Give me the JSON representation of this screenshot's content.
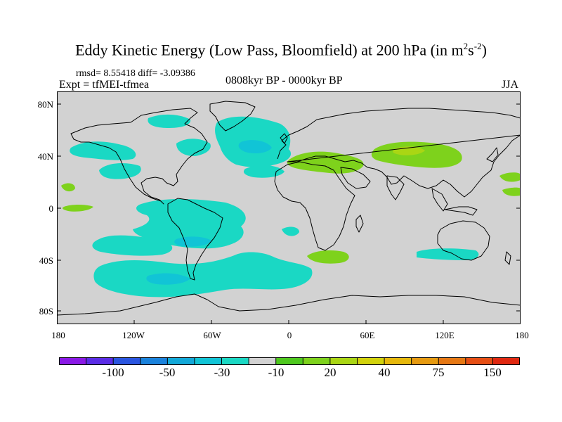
{
  "title": {
    "main": "Eddy Kinetic Energy (Low Pass, Bloomfield) at 200 hPa (in m",
    "sup1": "2",
    "mid": "s",
    "sup2": "-2",
    "end": ")"
  },
  "stats": "rmsd= 8.55418 diff= -3.09386",
  "experiment": "Expt = tfMEI-tfmea",
  "period": "0808kyr BP - 0000kyr BP",
  "season": "JJA",
  "map": {
    "projection": "cylindrical-equidistant",
    "lat_labels": [
      "80N",
      "40N",
      "0",
      "40S",
      "80S"
    ],
    "lon_labels": [
      "180",
      "120W",
      "60W",
      "0",
      "60E",
      "120E",
      "180"
    ],
    "background_color": "#d2d2d2"
  },
  "colorbar": {
    "colors": [
      "#8a19e6",
      "#5a2ce6",
      "#2a55e0",
      "#1a82dc",
      "#12a8d8",
      "#11c4d6",
      "#1ad8c4",
      "#d2d2d2",
      "#4ec81e",
      "#7ed21c",
      "#aad614",
      "#d2d20c",
      "#e6b80c",
      "#e69a10",
      "#e67814",
      "#e64e14",
      "#e02810"
    ],
    "labels": [
      "-100",
      "-50",
      "-30",
      "-10",
      "20",
      "40",
      "75",
      "150"
    ]
  },
  "anomaly_regions": [
    {
      "region": "Greenland / North Atlantic",
      "sign": "negative",
      "level": "-10"
    },
    {
      "region": "Europe / Mediterranean",
      "sign": "positive",
      "level": "20"
    },
    {
      "region": "Central Asia",
      "sign": "positive",
      "level": "20 to 40"
    },
    {
      "region": "South Atlantic off Africa",
      "sign": "positive",
      "level": "20"
    },
    {
      "region": "Southern Hemisphere mid-latitudes",
      "sign": "negative",
      "level": "-10 to -30"
    },
    {
      "region": "Subtropical North Pacific",
      "sign": "negative",
      "level": "-10"
    },
    {
      "region": "Southern Indian Ocean / Australia",
      "sign": "negative",
      "level": "-10"
    }
  ]
}
